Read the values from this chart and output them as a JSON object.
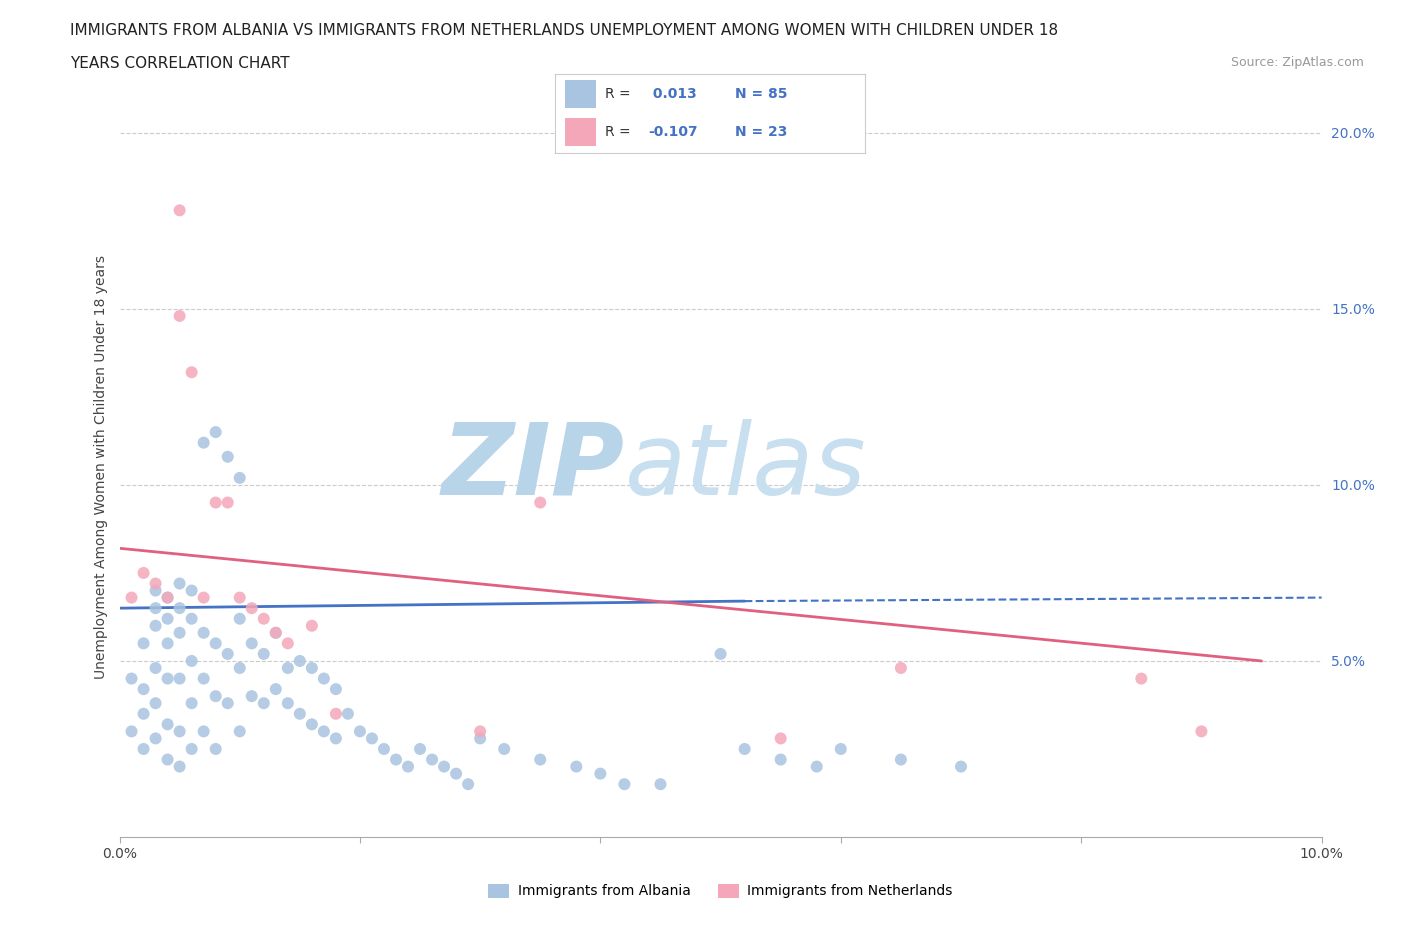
{
  "title_line1": "IMMIGRANTS FROM ALBANIA VS IMMIGRANTS FROM NETHERLANDS UNEMPLOYMENT AMONG WOMEN WITH CHILDREN UNDER 18",
  "title_line2": "YEARS CORRELATION CHART",
  "source": "Source: ZipAtlas.com",
  "ylabel": "Unemployment Among Women with Children Under 18 years",
  "xlim": [
    0.0,
    0.1
  ],
  "ylim": [
    0.0,
    0.21
  ],
  "R_albania": 0.013,
  "N_albania": 85,
  "R_netherlands": -0.107,
  "N_netherlands": 23,
  "legend_label1": "Immigrants from Albania",
  "legend_label2": "Immigrants from Netherlands",
  "color_albania": "#a8c4e0",
  "color_netherlands": "#f4a7b9",
  "color_albania_line": "#4472c4",
  "color_netherlands_line": "#e06080",
  "watermark": "ZIPatlas",
  "watermark_color": "#cde4f0",
  "albania_x": [
    0.001,
    0.001,
    0.002,
    0.002,
    0.002,
    0.002,
    0.003,
    0.003,
    0.003,
    0.003,
    0.003,
    0.003,
    0.004,
    0.004,
    0.004,
    0.004,
    0.004,
    0.004,
    0.005,
    0.005,
    0.005,
    0.005,
    0.005,
    0.005,
    0.006,
    0.006,
    0.006,
    0.006,
    0.006,
    0.007,
    0.007,
    0.007,
    0.007,
    0.008,
    0.008,
    0.008,
    0.008,
    0.009,
    0.009,
    0.009,
    0.01,
    0.01,
    0.01,
    0.01,
    0.011,
    0.011,
    0.012,
    0.012,
    0.013,
    0.013,
    0.014,
    0.014,
    0.015,
    0.015,
    0.016,
    0.016,
    0.017,
    0.017,
    0.018,
    0.018,
    0.019,
    0.02,
    0.021,
    0.022,
    0.023,
    0.024,
    0.025,
    0.026,
    0.027,
    0.028,
    0.029,
    0.03,
    0.032,
    0.035,
    0.038,
    0.04,
    0.042,
    0.045,
    0.05,
    0.052,
    0.055,
    0.058,
    0.06,
    0.065,
    0.07
  ],
  "albania_y": [
    0.03,
    0.045,
    0.025,
    0.035,
    0.042,
    0.055,
    0.028,
    0.038,
    0.048,
    0.06,
    0.065,
    0.07,
    0.022,
    0.032,
    0.045,
    0.055,
    0.062,
    0.068,
    0.02,
    0.03,
    0.045,
    0.058,
    0.065,
    0.072,
    0.025,
    0.038,
    0.05,
    0.062,
    0.07,
    0.03,
    0.045,
    0.058,
    0.112,
    0.025,
    0.04,
    0.055,
    0.115,
    0.038,
    0.052,
    0.108,
    0.03,
    0.048,
    0.062,
    0.102,
    0.04,
    0.055,
    0.038,
    0.052,
    0.042,
    0.058,
    0.038,
    0.048,
    0.035,
    0.05,
    0.032,
    0.048,
    0.03,
    0.045,
    0.028,
    0.042,
    0.035,
    0.03,
    0.028,
    0.025,
    0.022,
    0.02,
    0.025,
    0.022,
    0.02,
    0.018,
    0.015,
    0.028,
    0.025,
    0.022,
    0.02,
    0.018,
    0.015,
    0.015,
    0.052,
    0.025,
    0.022,
    0.02,
    0.025,
    0.022,
    0.02
  ],
  "netherlands_x": [
    0.001,
    0.002,
    0.003,
    0.004,
    0.005,
    0.005,
    0.006,
    0.007,
    0.008,
    0.009,
    0.01,
    0.011,
    0.012,
    0.013,
    0.014,
    0.016,
    0.018,
    0.03,
    0.035,
    0.055,
    0.065,
    0.085,
    0.09
  ],
  "netherlands_y": [
    0.068,
    0.075,
    0.072,
    0.068,
    0.178,
    0.148,
    0.132,
    0.068,
    0.095,
    0.095,
    0.068,
    0.065,
    0.062,
    0.058,
    0.055,
    0.06,
    0.035,
    0.03,
    0.095,
    0.028,
    0.048,
    0.045,
    0.03
  ],
  "alb_line_x0": 0.0,
  "alb_line_x_solid_end": 0.052,
  "alb_line_x_dash_end": 0.1,
  "alb_line_y0": 0.065,
  "alb_line_y_solid_end": 0.067,
  "alb_line_y_dash_end": 0.068,
  "neth_line_x0": 0.0,
  "neth_line_x_end": 0.095,
  "neth_line_y0": 0.082,
  "neth_line_y_end": 0.05
}
